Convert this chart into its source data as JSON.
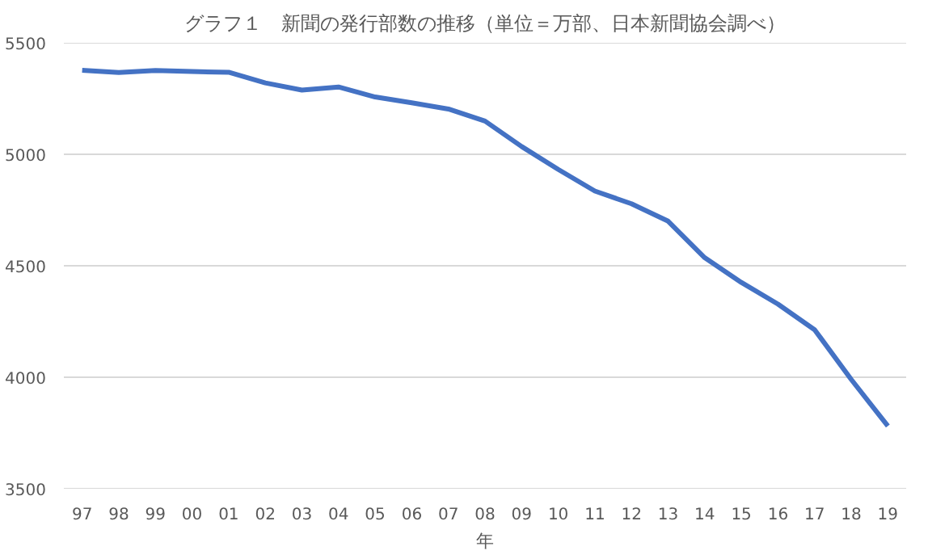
{
  "chart_data": {
    "type": "line",
    "title": "グラフ１　新聞の発行部数の推移（単位＝万部、日本新聞協会調べ）",
    "xlabel": "年",
    "categories": [
      "97",
      "98",
      "99",
      "00",
      "01",
      "02",
      "03",
      "04",
      "05",
      "06",
      "07",
      "08",
      "09",
      "10",
      "11",
      "12",
      "13",
      "14",
      "15",
      "16",
      "17",
      "18",
      "19"
    ],
    "series": [
      {
        "color": "#4472c4",
        "values": [
          5377,
          5367,
          5376,
          5371,
          5368,
          5320,
          5288,
          5302,
          5257,
          5231,
          5203,
          5149,
          5035,
          4932,
          4835,
          4778,
          4700,
          4536,
          4425,
          4328,
          4213,
          3990,
          3781
        ]
      }
    ],
    "ylim": [
      3500,
      5500
    ],
    "yticks": [
      3500,
      4000,
      4500,
      5000,
      5500
    ],
    "grid": "y",
    "marker": "none",
    "line_style": "solid"
  }
}
